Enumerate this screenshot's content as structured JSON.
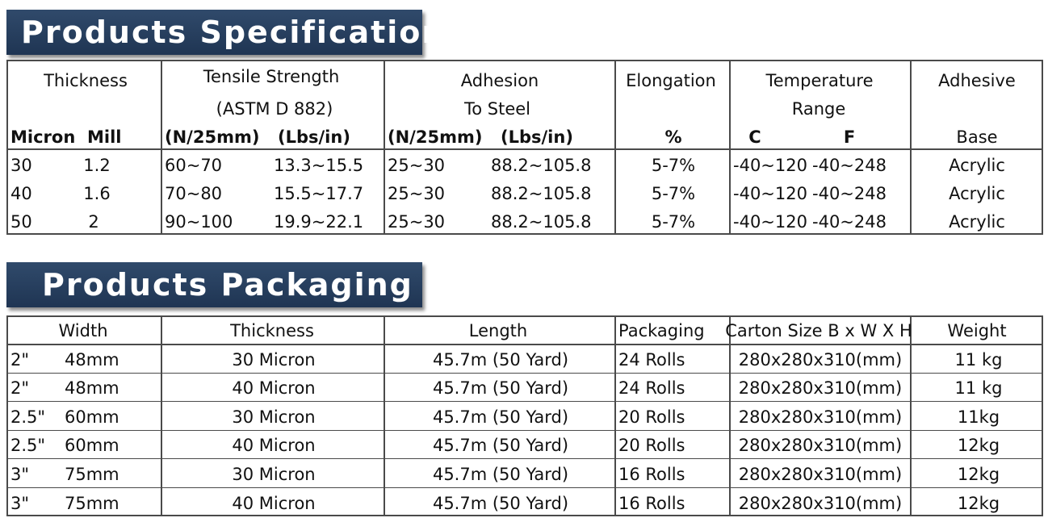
{
  "spec": {
    "title": "Products Specification",
    "headers": {
      "thickness": "Thickness",
      "tensile_1": "Tensile Strength",
      "tensile_2": "(ASTM D 882)",
      "adhesion_1": "Adhesion",
      "adhesion_2": "To Steel",
      "elongation": "Elongation",
      "temperature_1": "Temperature",
      "temperature_2": "Range",
      "adhesive": "Adhesive",
      "micron": "Micron",
      "mill": "Mill",
      "tensile_n": "(N/25mm)",
      "tensile_lbs": "(Lbs/in)",
      "adhesion_n": "(N/25mm)",
      "adhesion_lbs": "(Lbs/in)",
      "elongation_unit": "%",
      "temp_c": "C",
      "temp_f": "F",
      "base": "Base"
    },
    "rows": [
      {
        "micron": "30",
        "mill": "1.2",
        "tensile_n": "60~70",
        "tensile_lbs": "13.3~15.5",
        "adhesion_n": "25~30",
        "adhesion_lbs": "88.2~105.8",
        "elongation": "5-7%",
        "temp_c": "-40~120",
        "temp_f": "-40~248",
        "base": "Acrylic"
      },
      {
        "micron": "40",
        "mill": "1.6",
        "tensile_n": "70~80",
        "tensile_lbs": "15.5~17.7",
        "adhesion_n": "25~30",
        "adhesion_lbs": "88.2~105.8",
        "elongation": "5-7%",
        "temp_c": "-40~120",
        "temp_f": "-40~248",
        "base": "Acrylic"
      },
      {
        "micron": "50",
        "mill": "2",
        "tensile_n": "90~100",
        "tensile_lbs": "19.9~22.1",
        "adhesion_n": "25~30",
        "adhesion_lbs": "88.2~105.8",
        "elongation": "5-7%",
        "temp_c": "-40~120",
        "temp_f": "-40~248",
        "base": "Acrylic"
      }
    ]
  },
  "packaging": {
    "title": "Products Packaging",
    "headers": {
      "width": "Width",
      "thickness": "Thickness",
      "length": "Length",
      "packaging": "Packaging",
      "carton": "Carton Size B x W X H",
      "weight": "Weight"
    },
    "rows": [
      {
        "inch": "2\"",
        "mm": "48mm",
        "thickness": "30 Micron",
        "length": "45.7m (50 Yard)",
        "packaging": "24 Rolls",
        "carton": "280x280x310(mm)",
        "weight": "11 kg"
      },
      {
        "inch": "2\"",
        "mm": "48mm",
        "thickness": "40 Micron",
        "length": "45.7m (50 Yard)",
        "packaging": "24 Rolls",
        "carton": "280x280x310(mm)",
        "weight": "11 kg"
      },
      {
        "inch": "2.5\"",
        "mm": "60mm",
        "thickness": "30 Micron",
        "length": "45.7m (50 Yard)",
        "packaging": "20 Rolls",
        "carton": "280x280x310(mm)",
        "weight": "11kg"
      },
      {
        "inch": "2.5\"",
        "mm": "60mm",
        "thickness": "40 Micron",
        "length": "45.7m (50 Yard)",
        "packaging": "20 Rolls",
        "carton": "280x280x310(mm)",
        "weight": "12kg"
      },
      {
        "inch": "3\"",
        "mm": "75mm",
        "thickness": "30 Micron",
        "length": "45.7m (50 Yard)",
        "packaging": "16 Rolls",
        "carton": "280x280x310(mm)",
        "weight": "12kg"
      },
      {
        "inch": "3\"",
        "mm": "75mm",
        "thickness": "40 Micron",
        "length": "45.7m (50 Yard)",
        "packaging": "16 Rolls",
        "carton": "280x280x310(mm)",
        "weight": "12kg"
      }
    ]
  }
}
